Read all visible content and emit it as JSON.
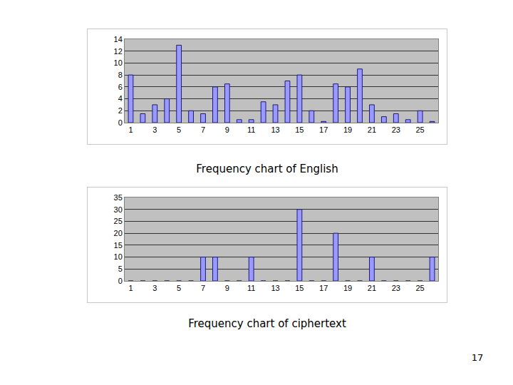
{
  "chart_data": [
    {
      "type": "bar",
      "title": "Frequency chart of English",
      "x": [
        1,
        2,
        3,
        4,
        5,
        6,
        7,
        8,
        9,
        10,
        11,
        12,
        13,
        14,
        15,
        16,
        17,
        18,
        19,
        20,
        21,
        22,
        23,
        24,
        25,
        26
      ],
      "values": [
        8,
        1.5,
        3,
        4,
        13,
        2,
        1.5,
        6,
        6.5,
        0.5,
        0.5,
        3.5,
        3,
        7,
        8,
        2,
        0.2,
        6.5,
        6,
        9,
        3,
        1,
        1.5,
        0.5,
        2,
        0.2
      ],
      "color": "#9999ff",
      "xlim": [
        0.5,
        26.5
      ],
      "xticks": [
        1,
        3,
        5,
        7,
        9,
        11,
        13,
        15,
        17,
        19,
        21,
        23,
        25
      ],
      "ylim": [
        0,
        14
      ],
      "yticks": [
        0,
        2,
        4,
        6,
        8,
        10,
        12,
        14
      ],
      "grid": true
    },
    {
      "type": "bar",
      "title": "Frequency chart of ciphertext",
      "x": [
        1,
        2,
        3,
        4,
        5,
        6,
        7,
        8,
        9,
        10,
        11,
        12,
        13,
        14,
        15,
        16,
        17,
        18,
        19,
        20,
        21,
        22,
        23,
        24,
        25,
        26
      ],
      "values": [
        0,
        0,
        0,
        0,
        0,
        0,
        10,
        10,
        0,
        0,
        10,
        0,
        0,
        0,
        30,
        0,
        0,
        20,
        0,
        0,
        10,
        0,
        0,
        0,
        0,
        10
      ],
      "color": "#9999ff",
      "xlim": [
        0.5,
        26.5
      ],
      "xticks": [
        1,
        3,
        5,
        7,
        9,
        11,
        13,
        15,
        17,
        19,
        21,
        23,
        25
      ],
      "ylim": [
        0,
        35
      ],
      "yticks": [
        0,
        5,
        10,
        15,
        20,
        25,
        30,
        35
      ],
      "grid": true
    }
  ],
  "footer": {
    "page_number": "17"
  }
}
